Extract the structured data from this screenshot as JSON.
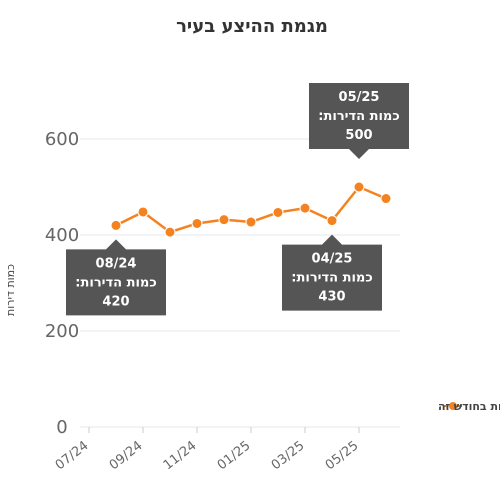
{
  "chart_data": {
    "type": "line",
    "title": "מגמת ההיצע בעיר",
    "xlabel": "",
    "ylabel": "כמות דירות",
    "ylim": [
      0,
      700
    ],
    "y_ticks": [
      "0",
      "200",
      "400",
      "600"
    ],
    "x_tick_labels": [
      "07/24",
      "09/24",
      "11/24",
      "01/25",
      "03/25",
      "05/25"
    ],
    "x": [
      "08/24",
      "09/24",
      "10/24",
      "11/24",
      "12/24",
      "01/25",
      "02/25",
      "03/25",
      "04/25",
      "05/25",
      "06/25"
    ],
    "series": [
      {
        "name": "כמות הדירות המוצעות בחודש זה",
        "values": [
          420,
          448,
          406,
          424,
          432,
          427,
          447,
          456,
          430,
          500,
          476
        ]
      }
    ],
    "legend_position": "bottom-right",
    "grid": true,
    "tooltips": [
      {
        "month": "08/24",
        "label": "כמות הדירות:",
        "value": "420"
      },
      {
        "month": "04/25",
        "label": "כמות הדירות:",
        "value": "430"
      },
      {
        "month": "05/25",
        "label": "כמות הדירות:",
        "value": "500"
      }
    ],
    "colors": {
      "series": "#f58220",
      "tooltip_bg": "#555555",
      "tooltip_text": "#ffffff",
      "grid": "#e3e7ee",
      "axis_text": "#666666",
      "title": "#333333"
    }
  }
}
